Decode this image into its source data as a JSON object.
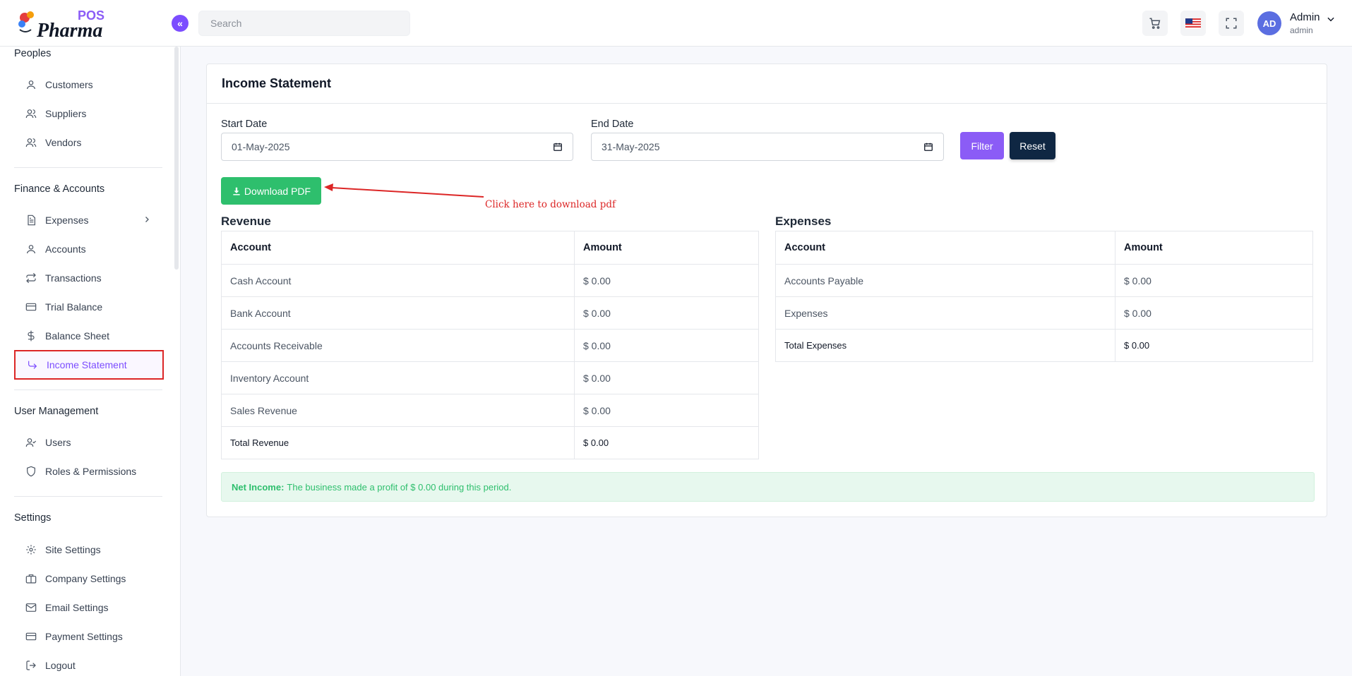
{
  "brand": {
    "pos": "POS",
    "name": "Pharma"
  },
  "header": {
    "search_placeholder": "Search",
    "user_initials": "AD",
    "user_name": "Admin",
    "user_role": "admin"
  },
  "sidebar": {
    "peoples": {
      "title": "Peoples",
      "items": [
        {
          "label": "Customers",
          "icon": "user-icon"
        },
        {
          "label": "Suppliers",
          "icon": "users-icon"
        },
        {
          "label": "Vendors",
          "icon": "users-icon"
        }
      ]
    },
    "finance": {
      "title": "Finance & Accounts",
      "items": [
        {
          "label": "Expenses",
          "icon": "document-icon"
        },
        {
          "label": "Accounts",
          "icon": "user-icon"
        },
        {
          "label": "Transactions",
          "icon": "repeat-icon"
        },
        {
          "label": "Trial Balance",
          "icon": "credit-card-icon"
        },
        {
          "label": "Balance Sheet",
          "icon": "dollar-icon"
        },
        {
          "label": "Income Statement",
          "icon": "corner-down-right-icon"
        }
      ]
    },
    "users": {
      "title": "User Management",
      "items": [
        {
          "label": "Users",
          "icon": "user-check-icon"
        },
        {
          "label": "Roles & Permissions",
          "icon": "shield-icon"
        }
      ]
    },
    "settings": {
      "title": "Settings",
      "items": [
        {
          "label": "Site Settings",
          "icon": "gear-icon"
        },
        {
          "label": "Company Settings",
          "icon": "briefcase-icon"
        },
        {
          "label": "Email Settings",
          "icon": "mail-icon"
        },
        {
          "label": "Payment Settings",
          "icon": "credit-card-icon"
        },
        {
          "label": "Logout",
          "icon": "logout-icon"
        }
      ]
    }
  },
  "main": {
    "title": "Income Statement",
    "start_date_label": "Start Date",
    "start_date_value": "01-May-2025",
    "end_date_label": "End Date",
    "end_date_value": "31-May-2025",
    "filter_label": "Filter",
    "reset_label": "Reset",
    "download_label": "Download PDF",
    "annotation": "Click here to download pdf",
    "revenue": {
      "title": "Revenue",
      "col_account": "Account",
      "col_amount": "Amount",
      "rows": [
        {
          "account": "Cash Account",
          "amount": "$ 0.00"
        },
        {
          "account": "Bank Account",
          "amount": "$ 0.00"
        },
        {
          "account": "Accounts Receivable",
          "amount": "$ 0.00"
        },
        {
          "account": "Inventory Account",
          "amount": "$ 0.00"
        },
        {
          "account": "Sales Revenue",
          "amount": "$ 0.00"
        }
      ],
      "total_label": "Total Revenue",
      "total_amount": "$ 0.00"
    },
    "expenses": {
      "title": "Expenses",
      "col_account": "Account",
      "col_amount": "Amount",
      "rows": [
        {
          "account": "Accounts Payable",
          "amount": "$ 0.00"
        },
        {
          "account": "Expenses",
          "amount": "$ 0.00"
        }
      ],
      "total_label": "Total Expenses",
      "total_amount": "$ 0.00"
    },
    "net_label": "Net Income:",
    "net_text": "The business made a profit of $ 0.00 during this period."
  },
  "colors": {
    "accent": "#7c4dff",
    "filter": "#8b5cf6",
    "reset": "#0f2743",
    "download": "#2ebf6d",
    "annotation": "#dc2626"
  }
}
